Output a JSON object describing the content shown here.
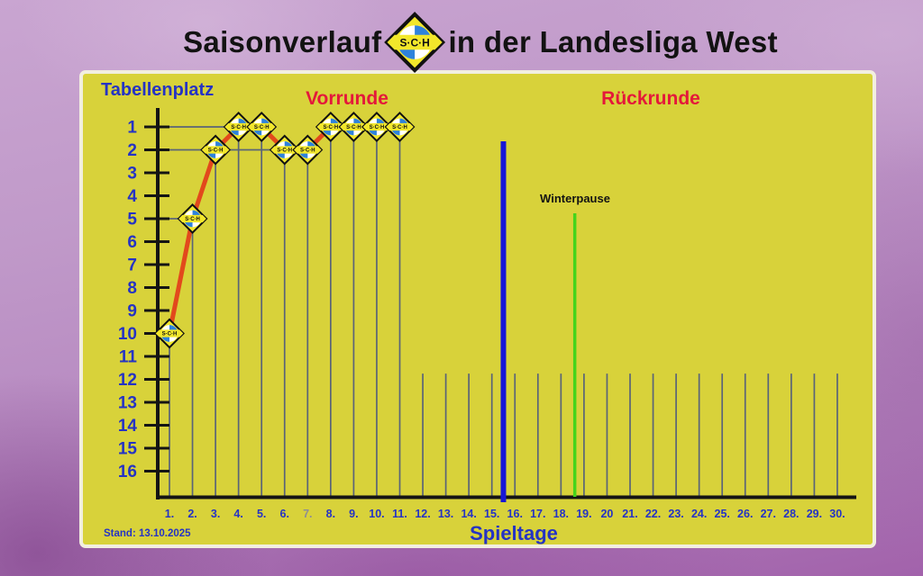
{
  "header": {
    "title_left": "Saisonverlauf",
    "title_right": "in der Landesliga West",
    "logo_text": "S·C·H"
  },
  "footer": {
    "stand": "Stand: 13.10.2025"
  },
  "chart_data": {
    "type": "line",
    "title": "Saisonverlauf in der Landesliga West",
    "xlabel": "Spieltage",
    "ylabel": "Tabellenplatz",
    "phase_labels": [
      "Vorrunde",
      "Rückrunde"
    ],
    "winter_break": {
      "label": "Winterpause",
      "at_matchday": 18.6
    },
    "halftime_divider_at_matchday": 15.5,
    "x_range": [
      1,
      30
    ],
    "y_range": [
      1,
      16
    ],
    "y_axis_inverted": true,
    "x_ticks": [
      "1.",
      "2.",
      "3.",
      "4.",
      "5.",
      "6.",
      "7.",
      "8.",
      "9.",
      "10.",
      "11.",
      "12.",
      "13.",
      "14.",
      "15.",
      "16.",
      "17.",
      "18.",
      "19.",
      "20",
      "21.",
      "22.",
      "23.",
      "24.",
      "25.",
      "26.",
      "27.",
      "28.",
      "29.",
      "30."
    ],
    "muted_x_tick_index": 6,
    "y_ticks": [
      1,
      2,
      3,
      4,
      5,
      6,
      7,
      8,
      9,
      10,
      11,
      12,
      13,
      14,
      15,
      16
    ],
    "series": [
      {
        "name": "S·C·H",
        "x": [
          1,
          2,
          3,
          4,
          5,
          6,
          7,
          8,
          9,
          10,
          11
        ],
        "values": [
          10,
          5,
          2,
          1,
          1,
          2,
          2,
          1,
          1,
          1,
          1
        ]
      }
    ],
    "reference_lines": [
      {
        "position": 1,
        "to_matchday": 5
      },
      {
        "position": 2,
        "to_matchday": 7
      },
      {
        "position": 5,
        "to_matchday": 2
      },
      {
        "position": 10,
        "to_matchday": 1
      }
    ],
    "colors": {
      "panel": "#d8d23a",
      "line": "#e2491c",
      "grid": "#5a6478",
      "divider_blue": "#1717d6",
      "winter_green": "#44d41c",
      "axis_black": "#141414",
      "text_blue": "#2533c4",
      "label_red": "#e4183a",
      "muted_tick": "#8d8d96",
      "marker_yellow": "#f2e72b",
      "logo_blue": "#2e82dc"
    }
  }
}
